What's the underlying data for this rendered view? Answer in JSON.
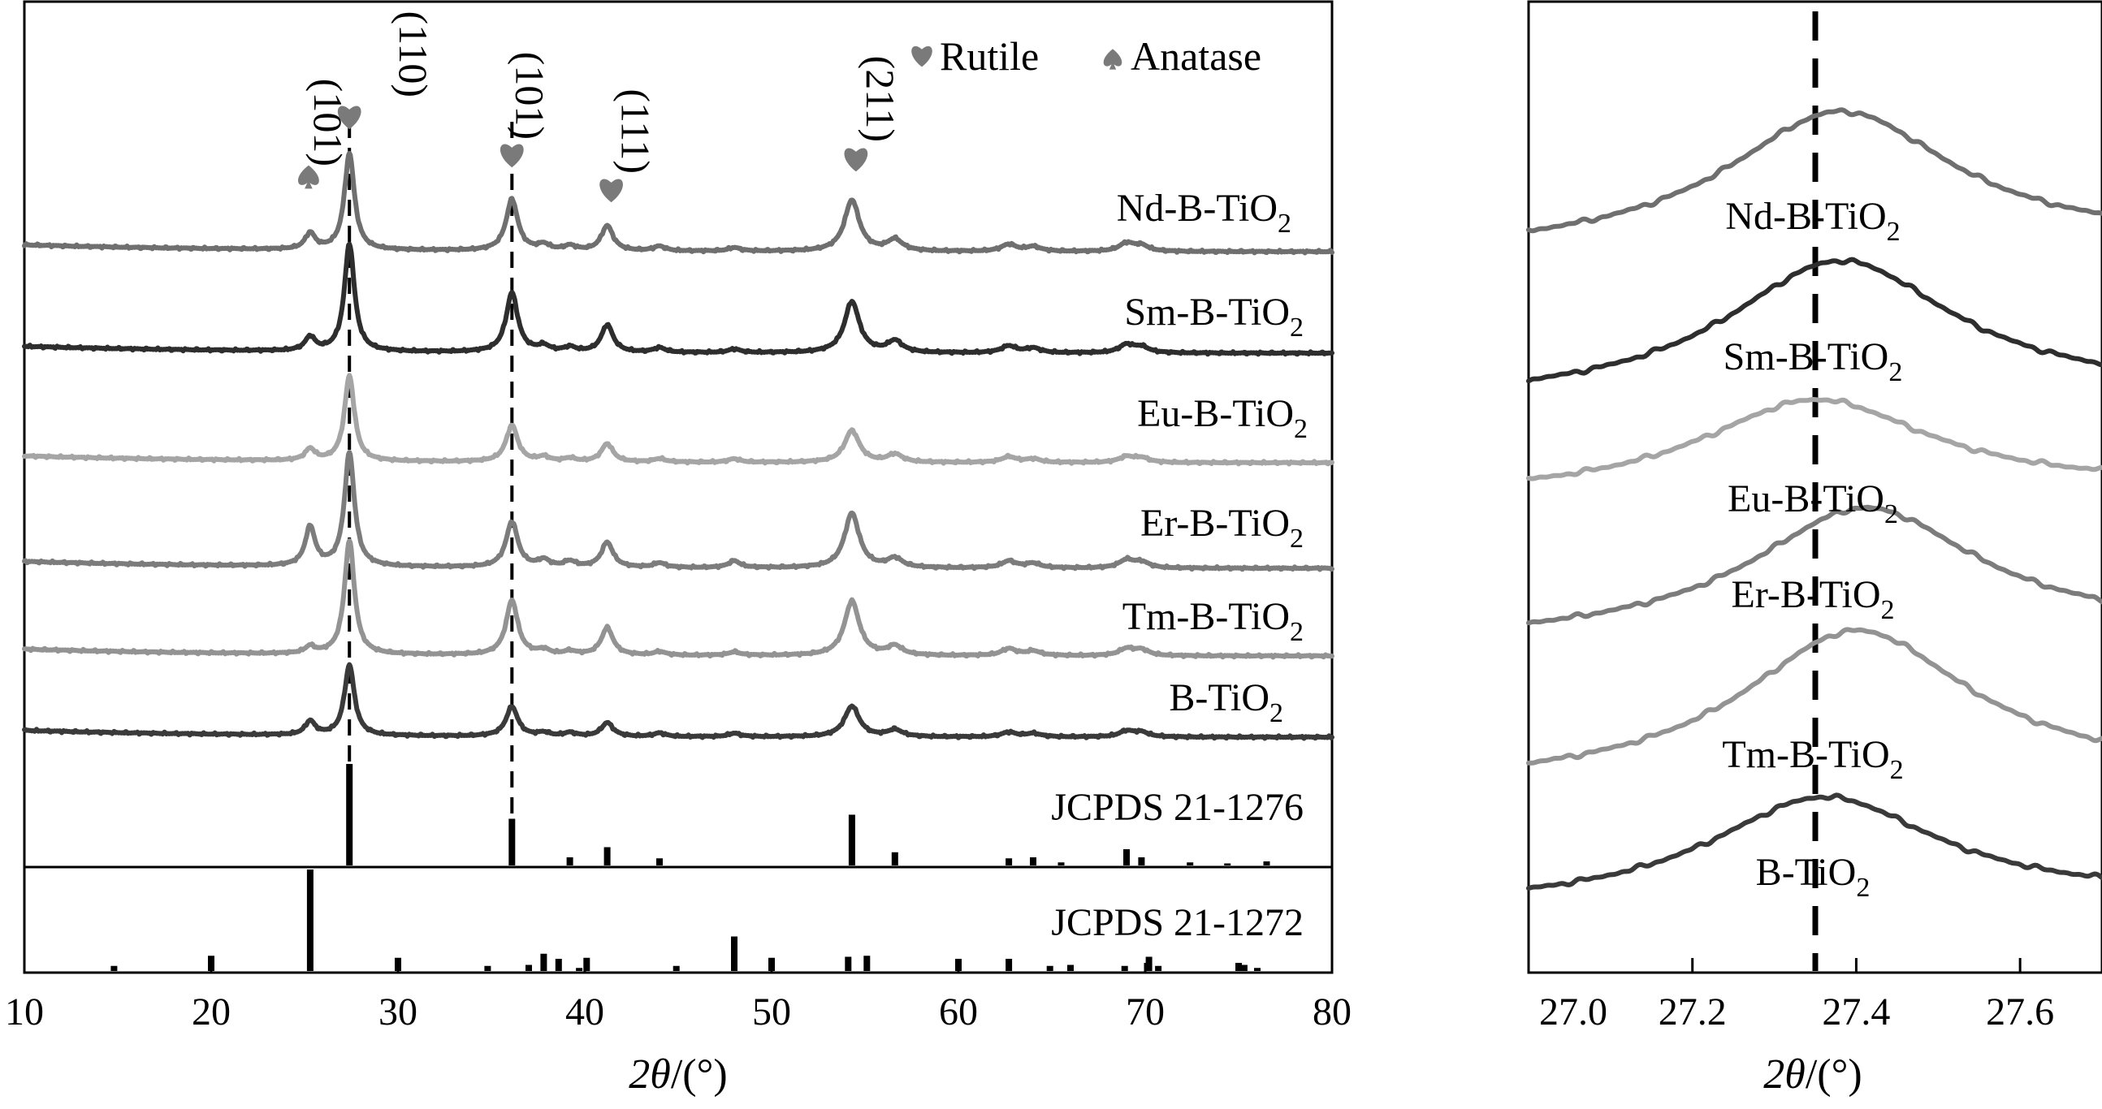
{
  "chart_data": [
    {
      "type": "line",
      "xlabel": "2θ/(°)",
      "xlim": [
        10,
        80
      ],
      "xticks": [
        10,
        20,
        30,
        40,
        50,
        60,
        70,
        80
      ],
      "legend": {
        "placement": "top-right",
        "items": [
          {
            "symbol": "heart",
            "label": "Rutile"
          },
          {
            "symbol": "spade",
            "label": "Anatase"
          }
        ]
      },
      "peak_annotations": [
        {
          "symbol": "spade",
          "x": 25.3,
          "label": "(101)"
        },
        {
          "symbol": "heart",
          "x": 27.4,
          "label": "(110)"
        },
        {
          "symbol": "heart",
          "x": 36.1,
          "label": "(101)"
        },
        {
          "symbol": "heart",
          "x": 41.2,
          "label": "(111)"
        },
        {
          "symbol": "heart",
          "x": 54.3,
          "label": "(211)"
        }
      ],
      "reference_lines_x": [
        27.4,
        36.1
      ],
      "peak_positions": [
        25.3,
        27.4,
        36.1,
        37.8,
        39.2,
        41.2,
        44.0,
        48.0,
        54.3,
        56.6,
        62.7,
        64.0,
        69.0,
        69.8
      ],
      "series": [
        {
          "name": "Nd-B-TiO2",
          "label_main": "Nd-B-TiO",
          "label_sub": "2",
          "color": "#6f6f6f",
          "intensity": [
            0.14,
            0.85,
            0.45,
            0.05,
            0.04,
            0.22,
            0.04,
            0.03,
            0.45,
            0.1,
            0.06,
            0.04,
            0.07,
            0.05
          ]
        },
        {
          "name": "Sm-B-TiO2",
          "label_main": "Sm-B-TiO",
          "label_sub": "2",
          "color": "#2e2e2e",
          "intensity": [
            0.12,
            0.95,
            0.52,
            0.05,
            0.04,
            0.24,
            0.04,
            0.03,
            0.45,
            0.1,
            0.06,
            0.04,
            0.07,
            0.05
          ]
        },
        {
          "name": "Eu-B-TiO2",
          "label_main": "Eu-B-TiO",
          "label_sub": "2",
          "color": "#a5a5a5",
          "intensity": [
            0.1,
            0.75,
            0.32,
            0.04,
            0.03,
            0.16,
            0.03,
            0.03,
            0.28,
            0.07,
            0.05,
            0.03,
            0.05,
            0.04
          ]
        },
        {
          "name": "Er-B-TiO2",
          "label_main": "Er-B-TiO",
          "label_sub": "2",
          "color": "#7c7c7c",
          "intensity": [
            0.34,
            1.0,
            0.4,
            0.06,
            0.05,
            0.22,
            0.04,
            0.06,
            0.48,
            0.08,
            0.06,
            0.04,
            0.07,
            0.05
          ]
        },
        {
          "name": "Tm-B-TiO2",
          "label_main": "Tm-B-TiO",
          "label_sub": "2",
          "color": "#939393",
          "intensity": [
            0.06,
            1.0,
            0.48,
            0.04,
            0.03,
            0.24,
            0.03,
            0.03,
            0.48,
            0.08,
            0.06,
            0.04,
            0.06,
            0.05
          ]
        },
        {
          "name": "B-TiO2",
          "label_main": "B-TiO",
          "label_sub": "2",
          "color": "#3a3a3a",
          "intensity": [
            0.12,
            0.62,
            0.26,
            0.03,
            0.03,
            0.12,
            0.03,
            0.03,
            0.27,
            0.06,
            0.04,
            0.03,
            0.05,
            0.04
          ]
        }
      ],
      "reference_patterns": [
        {
          "name": "JCPDS 21-1276",
          "lines": [
            [
              27.4,
              1.0
            ],
            [
              36.1,
              0.46
            ],
            [
              39.2,
              0.08
            ],
            [
              41.2,
              0.18
            ],
            [
              44.0,
              0.07
            ],
            [
              54.3,
              0.5
            ],
            [
              56.6,
              0.13
            ],
            [
              62.7,
              0.07
            ],
            [
              64.0,
              0.08
            ],
            [
              65.5,
              0.03
            ],
            [
              69.0,
              0.16
            ],
            [
              69.8,
              0.08
            ],
            [
              72.4,
              0.03
            ],
            [
              74.4,
              0.02
            ],
            [
              76.5,
              0.04
            ]
          ]
        },
        {
          "name": "JCPDS 21-1272",
          "lines": [
            [
              14.8,
              0.05
            ],
            [
              20.0,
              0.15
            ],
            [
              25.3,
              1.0
            ],
            [
              30.0,
              0.13
            ],
            [
              34.8,
              0.05
            ],
            [
              37.0,
              0.06
            ],
            [
              37.8,
              0.17
            ],
            [
              38.6,
              0.12
            ],
            [
              39.7,
              0.03
            ],
            [
              40.1,
              0.13
            ],
            [
              44.9,
              0.05
            ],
            [
              48.0,
              0.34
            ],
            [
              50.0,
              0.13
            ],
            [
              54.1,
              0.14
            ],
            [
              55.1,
              0.15
            ],
            [
              60.0,
              0.12
            ],
            [
              62.7,
              0.12
            ],
            [
              64.9,
              0.05
            ],
            [
              66.0,
              0.06
            ],
            [
              68.9,
              0.05
            ],
            [
              70.2,
              0.14
            ],
            [
              70.7,
              0.05
            ],
            [
              75.0,
              0.08
            ],
            [
              75.3,
              0.06
            ],
            [
              76.0,
              0.03
            ]
          ]
        }
      ]
    },
    {
      "type": "line",
      "xlabel": "2θ/(°)",
      "xlim": [
        27.0,
        27.7
      ],
      "xticks": [
        27.0,
        27.2,
        27.4,
        27.6
      ],
      "xtick_labels": [
        "27.0",
        "27.2",
        "27.4",
        "27.6"
      ],
      "reference_line_x": 27.35,
      "series": [
        {
          "name": "Nd-B-TiO2",
          "label_main": "Nd-B-TiO",
          "label_sub": "2",
          "color": "#6f6f6f",
          "peak_center": 27.38,
          "rise": 0.62
        },
        {
          "name": "Sm-B-TiO2",
          "label_main": "Sm-B-TiO",
          "label_sub": "2",
          "color": "#2e2e2e",
          "peak_center": 27.38,
          "rise": 0.62
        },
        {
          "name": "Eu-B-TiO2",
          "label_main": "Eu-B-TiO",
          "label_sub": "2",
          "color": "#a5a5a5",
          "peak_center": 27.35,
          "rise": 0.42
        },
        {
          "name": "Er-B-TiO2",
          "label_main": "Er-B-TiO",
          "label_sub": "2",
          "color": "#7c7c7c",
          "peak_center": 27.41,
          "rise": 0.58
        },
        {
          "name": "Tm-B-TiO2",
          "label_main": "Tm-B-TiO",
          "label_sub": "2",
          "color": "#939393",
          "peak_center": 27.4,
          "rise": 0.68
        },
        {
          "name": "B-TiO2",
          "label_main": "B-TiO",
          "label_sub": "2",
          "color": "#3a3a3a",
          "peak_center": 27.36,
          "rise": 0.48
        }
      ]
    }
  ]
}
